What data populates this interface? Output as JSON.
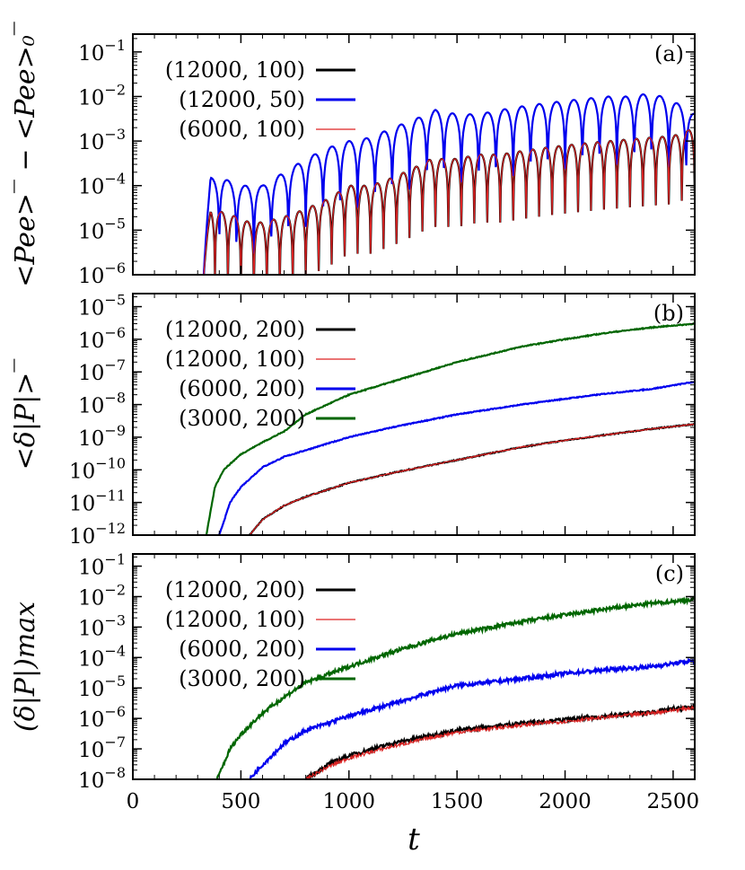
{
  "x_axis": {
    "label": "t",
    "range": [
      0,
      2600
    ],
    "ticks": [
      {
        "value": 0,
        "label": "0"
      },
      {
        "value": 500,
        "label": "500"
      },
      {
        "value": 1000,
        "label": "1000"
      },
      {
        "value": 1500,
        "label": "1500"
      },
      {
        "value": 2000,
        "label": "2000"
      },
      {
        "value": 2500,
        "label": "2500"
      }
    ]
  },
  "chart_data": [
    {
      "type": "line",
      "panel_label": "(a)",
      "ylabel": "<Pee>‾ − <Pee>₀‾",
      "xlim": [
        0,
        2600
      ],
      "ylim_log10": [
        -6,
        -0.6
      ],
      "yscale": "log",
      "grid": false,
      "legend_position": "top-left",
      "yticks": [
        {
          "exp": -6,
          "label": "10",
          "sup": "−6"
        },
        {
          "exp": -5,
          "label": "10",
          "sup": "−5"
        },
        {
          "exp": -4,
          "label": "10",
          "sup": "−4"
        },
        {
          "exp": -3,
          "label": "10",
          "sup": "−3"
        },
        {
          "exp": -2,
          "label": "10",
          "sup": "−2"
        },
        {
          "exp": -1,
          "label": "10",
          "sup": "−1"
        }
      ],
      "series": [
        {
          "name": "(12000, 100)",
          "color": "#000000",
          "x": [
            320,
            360,
            420,
            480,
            540,
            600,
            700,
            800,
            900,
            1000,
            1100,
            1200,
            1300,
            1380,
            1500,
            1600,
            1700,
            1800,
            1900,
            2000,
            2100,
            2200,
            2300,
            2400,
            2500,
            2600
          ],
          "y": [
            1e-06,
            3e-05,
            2.5e-05,
            2e-05,
            1.5e-05,
            1.5e-05,
            2e-05,
            3e-05,
            5e-05,
            0.0001,
            0.0001,
            0.00015,
            0.00025,
            0.0004,
            0.0004,
            0.0005,
            0.0005,
            0.0006,
            0.0007,
            0.0008,
            0.0009,
            0.001,
            0.0011,
            0.0012,
            0.0013,
            0.002
          ]
        },
        {
          "name": "(12000, 50)",
          "color": "#0000ee",
          "x": [
            320,
            360,
            420,
            480,
            540,
            600,
            700,
            800,
            900,
            1000,
            1100,
            1200,
            1300,
            1400,
            1500,
            1600,
            1700,
            1800,
            1900,
            2000,
            2100,
            2200,
            2300,
            2400,
            2500,
            2600
          ],
          "y": [
            1e-06,
            0.00015,
            0.00015,
            0.0001,
            0.0001,
            0.0001,
            0.0002,
            0.0004,
            0.0007,
            0.001,
            0.0012,
            0.002,
            0.003,
            0.005,
            0.004,
            0.004,
            0.005,
            0.006,
            0.007,
            0.008,
            0.009,
            0.01,
            0.01,
            0.012,
            0.008,
            0.004
          ]
        },
        {
          "name": "(6000, 100)",
          "color": "#dd2222",
          "x": [
            320,
            360,
            420,
            480,
            540,
            600,
            700,
            800,
            900,
            1000,
            1100,
            1200,
            1300,
            1380,
            1500,
            1600,
            1700,
            1800,
            1900,
            2000,
            2100,
            2200,
            2300,
            2400,
            2500,
            2600
          ],
          "y": [
            1e-06,
            3e-05,
            2.5e-05,
            2e-05,
            1.5e-05,
            1.5e-05,
            2e-05,
            3e-05,
            5e-05,
            0.0001,
            0.0001,
            0.00015,
            0.00025,
            0.0004,
            0.0004,
            0.0005,
            0.0005,
            0.0006,
            0.0007,
            0.0008,
            0.0009,
            0.001,
            0.0011,
            0.0012,
            0.0013,
            0.002
          ]
        }
      ]
    },
    {
      "type": "line",
      "panel_label": "(b)",
      "ylabel": "<δ|P|>‾",
      "xlim": [
        0,
        2600
      ],
      "ylim_log10": [
        -12,
        -4.6
      ],
      "yscale": "log",
      "grid": false,
      "legend_position": "top-left",
      "yticks": [
        {
          "exp": -12,
          "label": "10",
          "sup": "−12"
        },
        {
          "exp": -11,
          "label": "10",
          "sup": "−11"
        },
        {
          "exp": -10,
          "label": "10",
          "sup": "−10"
        },
        {
          "exp": -9,
          "label": "10",
          "sup": "−9"
        },
        {
          "exp": -8,
          "label": "10",
          "sup": "−8"
        },
        {
          "exp": -7,
          "label": "10",
          "sup": "−7"
        },
        {
          "exp": -6,
          "label": "10",
          "sup": "−6"
        },
        {
          "exp": -5,
          "label": "10",
          "sup": "−5"
        }
      ],
      "series": [
        {
          "name": "(12000, 200)",
          "color": "#000000",
          "x": [
            540,
            600,
            700,
            800,
            1000,
            1200,
            1500,
            1800,
            2000,
            2200,
            2400,
            2600
          ],
          "y": [
            1e-12,
            3e-12,
            8e-12,
            1.5e-11,
            4e-11,
            8e-11,
            2e-10,
            5e-10,
            8e-10,
            1.2e-09,
            1.8e-09,
            2.5e-09
          ]
        },
        {
          "name": "(12000, 100)",
          "color": "#dd2222",
          "x": [
            540,
            600,
            700,
            800,
            1000,
            1200,
            1500,
            1800,
            2000,
            2200,
            2400,
            2600
          ],
          "y": [
            1e-12,
            3e-12,
            8e-12,
            1.5e-11,
            4e-11,
            8e-11,
            2e-10,
            5e-10,
            8e-10,
            1.2e-09,
            1.8e-09,
            2.5e-09
          ]
        },
        {
          "name": "(6000, 200)",
          "color": "#0000ee",
          "x": [
            400,
            450,
            500,
            600,
            700,
            800,
            1000,
            1200,
            1500,
            1800,
            2000,
            2200,
            2400,
            2600
          ],
          "y": [
            1e-12,
            1e-11,
            3e-11,
            1.2e-10,
            2.5e-10,
            4e-10,
            1e-09,
            2e-09,
            5e-09,
            1e-08,
            1.5e-08,
            2.2e-08,
            3e-08,
            5e-08
          ]
        },
        {
          "name": "(3000, 200)",
          "color": "#006600",
          "x": [
            340,
            380,
            420,
            500,
            600,
            700,
            800,
            1000,
            1200,
            1500,
            1800,
            2000,
            2200,
            2400,
            2600
          ],
          "y": [
            1e-12,
            3e-11,
            1e-10,
            3e-10,
            7e-10,
            1.5e-09,
            5e-09,
            2e-08,
            5e-08,
            2e-07,
            6e-07,
            1e-06,
            1.6e-06,
            2.3e-06,
            3e-06
          ]
        }
      ]
    },
    {
      "type": "line",
      "panel_label": "(c)",
      "ylabel": "(δ|P|)max",
      "xlim": [
        0,
        2600
      ],
      "ylim_log10": [
        -8,
        -0.6
      ],
      "yscale": "log",
      "grid": false,
      "legend_position": "top-left",
      "yticks": [
        {
          "exp": -8,
          "label": "10",
          "sup": "−8"
        },
        {
          "exp": -7,
          "label": "10",
          "sup": "−7"
        },
        {
          "exp": -6,
          "label": "10",
          "sup": "−6"
        },
        {
          "exp": -5,
          "label": "10",
          "sup": "−5"
        },
        {
          "exp": -4,
          "label": "10",
          "sup": "−4"
        },
        {
          "exp": -3,
          "label": "10",
          "sup": "−3"
        },
        {
          "exp": -2,
          "label": "10",
          "sup": "−2"
        },
        {
          "exp": -1,
          "label": "10",
          "sup": "−1"
        }
      ],
      "series": [
        {
          "name": "(12000, 200)",
          "color": "#000000",
          "x": [
            800,
            900,
            1000,
            1200,
            1400,
            1500,
            1800,
            2000,
            2200,
            2400,
            2600
          ],
          "y": [
            1e-08,
            3e-08,
            6e-08,
            1.5e-07,
            3e-07,
            4e-07,
            7e-07,
            9e-07,
            1.2e-06,
            1.6e-06,
            2.5e-06
          ]
        },
        {
          "name": "(12000, 100)",
          "color": "#dd2222",
          "x": [
            800,
            900,
            1000,
            1200,
            1400,
            1500,
            1800,
            2000,
            2200,
            2400,
            2600
          ],
          "y": [
            1e-08,
            2.5e-08,
            5e-08,
            1.2e-07,
            2.5e-07,
            3.5e-07,
            6e-07,
            8e-07,
            1.1e-06,
            1.5e-06,
            2.3e-06
          ]
        },
        {
          "name": "(6000, 200)",
          "color": "#0000ee",
          "x": [
            540,
            600,
            700,
            800,
            1000,
            1200,
            1400,
            1500,
            1800,
            2000,
            2200,
            2400,
            2600
          ],
          "y": [
            1e-08,
            3e-08,
            1.5e-07,
            4e-07,
            1.2e-06,
            3e-06,
            8e-06,
            1.2e-05,
            2e-05,
            3e-05,
            4e-05,
            5e-05,
            8e-05
          ]
        },
        {
          "name": "(3000, 200)",
          "color": "#006600",
          "x": [
            390,
            450,
            500,
            600,
            700,
            800,
            1000,
            1200,
            1400,
            1500,
            1800,
            2000,
            2200,
            2400,
            2600
          ],
          "y": [
            1e-08,
            1e-07,
            3e-07,
            1.5e-06,
            5e-06,
            1.5e-05,
            5e-05,
            0.00015,
            0.0004,
            0.0006,
            0.0015,
            0.0025,
            0.004,
            0.006,
            0.008
          ]
        }
      ]
    }
  ]
}
